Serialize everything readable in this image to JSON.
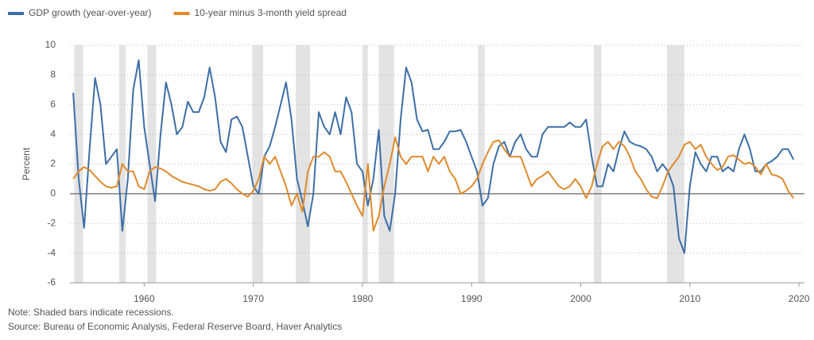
{
  "chart_data": {
    "type": "line",
    "y_label": "Percent",
    "note": "Note: Shaded bars indicate recessions.",
    "source": "Source: Bureau of Economic Analysis, Federal Reserve Board, Haver Analytics",
    "xlim": [
      1953.2,
      2020.5
    ],
    "ylim": [
      -6,
      10
    ],
    "xticks": [
      1960,
      1970,
      1980,
      1990,
      2000,
      2010,
      2020
    ],
    "yticks": [
      -6,
      -4,
      -2,
      0,
      2,
      4,
      6,
      8,
      10
    ],
    "grid": true,
    "legend": "top-left",
    "recession_color": "#e3e3e3",
    "recessions": [
      {
        "start": 1953.6,
        "end": 1954.4
      },
      {
        "start": 1957.7,
        "end": 1958.3
      },
      {
        "start": 1960.3,
        "end": 1961.1
      },
      {
        "start": 1969.9,
        "end": 1970.9
      },
      {
        "start": 1973.9,
        "end": 1975.2
      },
      {
        "start": 1980.0,
        "end": 1980.5
      },
      {
        "start": 1981.5,
        "end": 1982.9
      },
      {
        "start": 1990.6,
        "end": 1991.2
      },
      {
        "start": 2001.2,
        "end": 2001.9
      },
      {
        "start": 2007.9,
        "end": 2009.5
      }
    ],
    "x": [
      1953.5,
      1954,
      1954.5,
      1955,
      1955.5,
      1956,
      1956.5,
      1957,
      1957.5,
      1958,
      1958.5,
      1959,
      1959.5,
      1960,
      1960.5,
      1961,
      1961.5,
      1962,
      1962.5,
      1963,
      1963.5,
      1964,
      1964.5,
      1965,
      1965.5,
      1966,
      1966.5,
      1967,
      1967.5,
      1968,
      1968.5,
      1969,
      1969.5,
      1970,
      1970.5,
      1971,
      1971.5,
      1972,
      1972.5,
      1973,
      1973.5,
      1974,
      1974.5,
      1975,
      1975.5,
      1976,
      1976.5,
      1977,
      1977.5,
      1978,
      1978.5,
      1979,
      1979.5,
      1980,
      1980.5,
      1981,
      1981.5,
      1982,
      1982.5,
      1983,
      1983.5,
      1984,
      1984.5,
      1985,
      1985.5,
      1986,
      1986.5,
      1987,
      1987.5,
      1988,
      1988.5,
      1989,
      1989.5,
      1990,
      1990.5,
      1991,
      1991.5,
      1992,
      1992.5,
      1993,
      1993.5,
      1994,
      1994.5,
      1995,
      1995.5,
      1996,
      1996.5,
      1997,
      1997.5,
      1998,
      1998.5,
      1999,
      1999.5,
      2000,
      2000.5,
      2001,
      2001.5,
      2002,
      2002.5,
      2003,
      2003.5,
      2004,
      2004.5,
      2005,
      2005.5,
      2006,
      2006.5,
      2007,
      2007.5,
      2008,
      2008.5,
      2009,
      2009.5,
      2010,
      2010.5,
      2011,
      2011.5,
      2012,
      2012.5,
      2013,
      2013.5,
      2014,
      2014.5,
      2015,
      2015.5,
      2016,
      2016.5,
      2017,
      2017.5,
      2018,
      2018.5,
      2019,
      2019.5
    ],
    "series": [
      {
        "name": "GDP growth (year-over-year)",
        "color": "#3d6fa6",
        "values": [
          6.8,
          1,
          -2.3,
          3,
          7.8,
          6,
          2,
          2.5,
          3,
          -2.5,
          1,
          7,
          9,
          4.5,
          2,
          -0.5,
          4,
          7.5,
          6,
          4,
          4.5,
          6.2,
          5.5,
          5.5,
          6.5,
          8.5,
          6.5,
          3.5,
          2.8,
          5,
          5.2,
          4.5,
          2.5,
          0.5,
          0,
          2.5,
          3.2,
          4.5,
          6,
          7.5,
          5,
          1,
          -0.5,
          -2.2,
          0,
          5.5,
          4.5,
          4,
          5.5,
          4,
          6.5,
          5.5,
          2,
          1.5,
          -0.8,
          1,
          4.3,
          -1.5,
          -2.5,
          0,
          5,
          8.5,
          7.5,
          5,
          4.2,
          4.3,
          3,
          3,
          3.5,
          4.2,
          4.2,
          4.3,
          3.5,
          2.5,
          1.5,
          -0.8,
          -0.3,
          2,
          3.2,
          3.5,
          2.5,
          3.5,
          4,
          3,
          2.5,
          2.5,
          4,
          4.5,
          4.5,
          4.5,
          4.5,
          4.8,
          4.5,
          4.5,
          5,
          2.5,
          0.5,
          0.5,
          2,
          1.5,
          3,
          4.2,
          3.5,
          3.3,
          3.2,
          3,
          2.5,
          1.5,
          2,
          1.5,
          0.5,
          -3,
          -4,
          0.5,
          2.8,
          2,
          1.5,
          2.5,
          2.5,
          1.5,
          1.8,
          1.5,
          3,
          4,
          3,
          1.5,
          1.5,
          2,
          2.2,
          2.5,
          3,
          3,
          2.3
        ]
      },
      {
        "name": "10-year minus 3-month yield spread",
        "color": "#e08a2c",
        "values": [
          1,
          1.5,
          1.8,
          1.6,
          1.2,
          0.8,
          0.5,
          0.4,
          0.5,
          2,
          1.5,
          1.5,
          0.5,
          0.3,
          1.5,
          1.8,
          1.7,
          1.5,
          1.2,
          1,
          0.8,
          0.7,
          0.6,
          0.5,
          0.3,
          0.2,
          0.3,
          0.8,
          1,
          0.7,
          0.3,
          0,
          -0.2,
          0.2,
          1,
          2.5,
          2,
          2.5,
          1.5,
          0.5,
          -0.8,
          0,
          -1.2,
          1.5,
          2.5,
          2.5,
          2.8,
          2.5,
          1.5,
          1.5,
          0.8,
          0,
          -0.8,
          -1.5,
          2,
          -2.5,
          -1.5,
          0.5,
          2,
          3.8,
          2.5,
          2,
          2.5,
          2.5,
          2.5,
          1.5,
          2.5,
          2,
          2.5,
          1.5,
          1,
          0,
          0.2,
          0.5,
          1,
          2,
          2.8,
          3.5,
          3.6,
          3,
          2.5,
          2.5,
          2.5,
          1.5,
          0.5,
          1,
          1.2,
          1.5,
          1,
          0.5,
          0.3,
          0.5,
          1,
          0.5,
          -0.3,
          0.5,
          2,
          3.2,
          3.5,
          3,
          3.5,
          3.2,
          2.5,
          1.5,
          1,
          0.3,
          -0.2,
          -0.3,
          0.5,
          1.5,
          2,
          2.5,
          3.3,
          3.5,
          3,
          3.3,
          2.5,
          2,
          1.6,
          1.8,
          2.5,
          2.6,
          2.3,
          2,
          2.1,
          1.8,
          1.3,
          2,
          1.3,
          1.2,
          1,
          0.2,
          -0.3
        ]
      }
    ]
  }
}
